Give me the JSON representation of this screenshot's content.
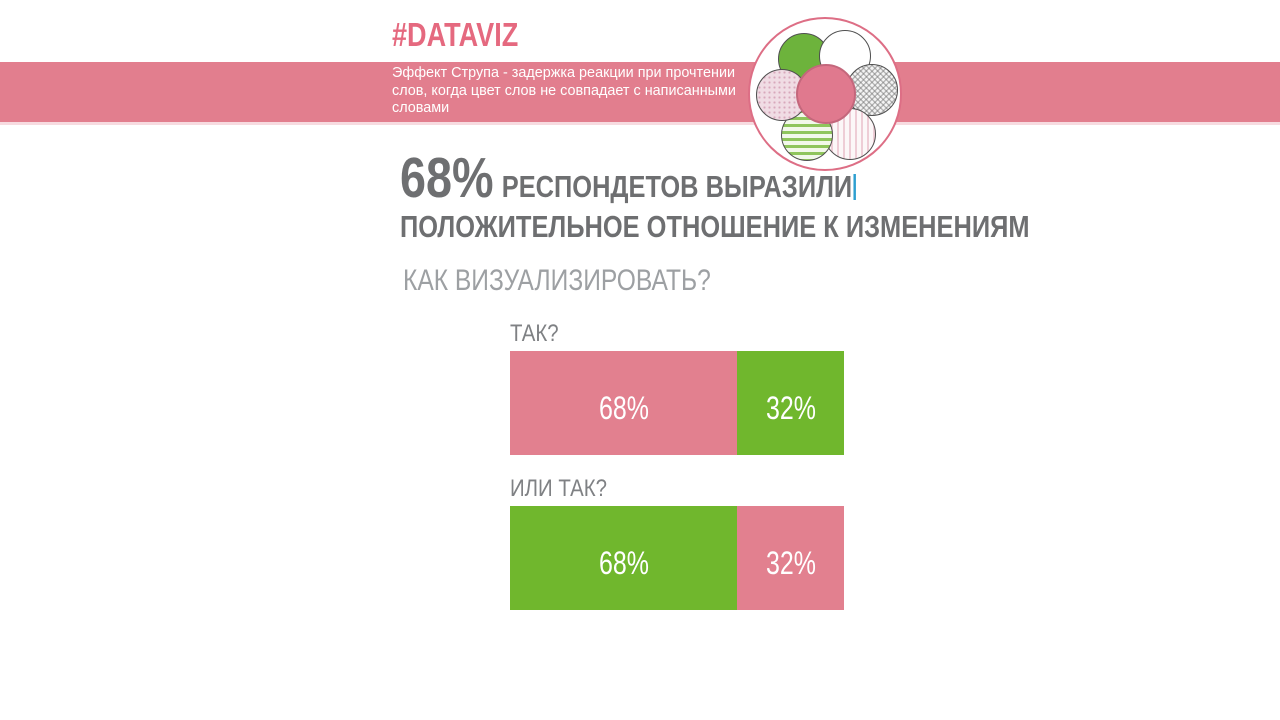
{
  "slide": {
    "hashtag": "#DATAVIZ",
    "banner": {
      "lines": [
        "Эффект Струпа - задержка реакции при прочтении",
        "слов, когда цвет слов не совпадает с написанными",
        "словами"
      ]
    },
    "headline": {
      "stat": "68%",
      "line1_rest": "РЕСПОНДЕТОВ ВЫРАЗИЛИ",
      "line2": "ПОЛОЖИТЕЛЬНОЕ ОТНОШЕНИЕ К ИЗМЕНЕНИЯМ"
    },
    "question": "КАК ВИЗУАЛИЗИРОВАТЬ?"
  },
  "logo": {
    "petals": [
      "green-solid",
      "white",
      "gray-checker",
      "pink-stripes",
      "green-stripes",
      "pink-dots"
    ],
    "center_color": "#e0798e"
  },
  "chart_data": [
    {
      "type": "bar",
      "variant": "horizontal-stacked",
      "title": "ТАК?",
      "segments": [
        {
          "label": "68%",
          "value": 68,
          "color": "#e2808f"
        },
        {
          "label": "32%",
          "value": 32,
          "color": "#70b72d"
        }
      ]
    },
    {
      "type": "bar",
      "variant": "horizontal-stacked",
      "title": "ИЛИ ТАК?",
      "segments": [
        {
          "label": "68%",
          "value": 68,
          "color": "#70b72d"
        },
        {
          "label": "32%",
          "value": 32,
          "color": "#e2808f"
        }
      ]
    }
  ],
  "colors": {
    "accent_pink_band": "#e27e8e",
    "accent_pink_bar": "#e2808f",
    "accent_green": "#70b72d",
    "hashtag_pink": "#e5697f",
    "headline_gray": "#6e6f71",
    "question_gray": "#9da0a3",
    "bar_title_gray": "#7f8184",
    "caret_blue": "#2d9fd0"
  }
}
